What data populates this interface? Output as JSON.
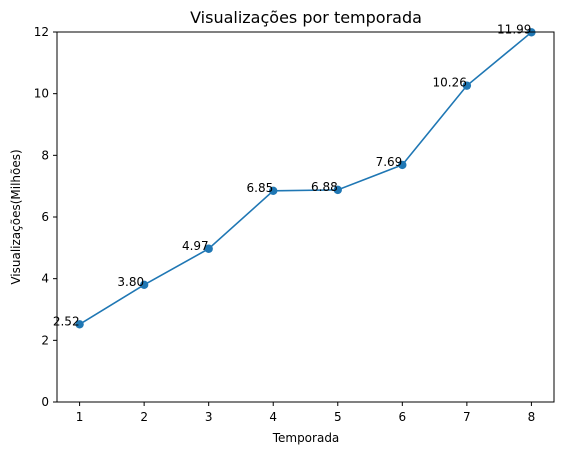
{
  "chart_data": {
    "type": "line",
    "title": "Visualizações por temporada",
    "xlabel": "Temporada",
    "ylabel": "Visualizações(Milhões)",
    "x": [
      1,
      2,
      3,
      4,
      5,
      6,
      7,
      8
    ],
    "series": [
      {
        "values": [
          2.52,
          3.8,
          4.97,
          6.85,
          6.88,
          7.69,
          10.26,
          11.99
        ],
        "color": "#1f77b4"
      }
    ],
    "data_labels": [
      "2.52",
      "3.80",
      "4.97",
      "6.85",
      "6.88",
      "7.69",
      "10.26",
      "11.99"
    ],
    "x_ticks": [
      1,
      2,
      3,
      4,
      5,
      6,
      7,
      8
    ],
    "y_ticks": [
      0,
      2,
      4,
      6,
      8,
      10,
      12
    ],
    "xlim": [
      0.65,
      8.35
    ],
    "ylim": [
      0,
      12
    ],
    "grid": false,
    "legend": "none"
  }
}
